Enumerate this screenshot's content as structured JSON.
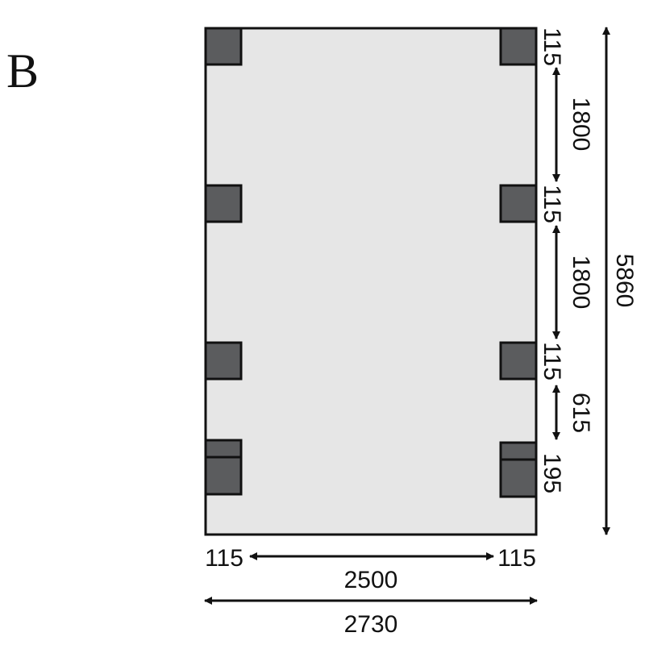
{
  "figure_label": "B",
  "colors": {
    "slab": "#e6e6e6",
    "post": "#5b5c5e",
    "line": "#111111"
  },
  "dimensions": {
    "right": {
      "top_post": "115",
      "gap_1": "1800",
      "post_2": "115",
      "gap_2": "1800",
      "post_3": "115",
      "gap_3": "615",
      "bottom_post": "195"
    },
    "total_length": "5860",
    "bottom": {
      "left_post": "115",
      "inner_width": "2500",
      "right_post": "115",
      "total_width": "2730"
    }
  }
}
